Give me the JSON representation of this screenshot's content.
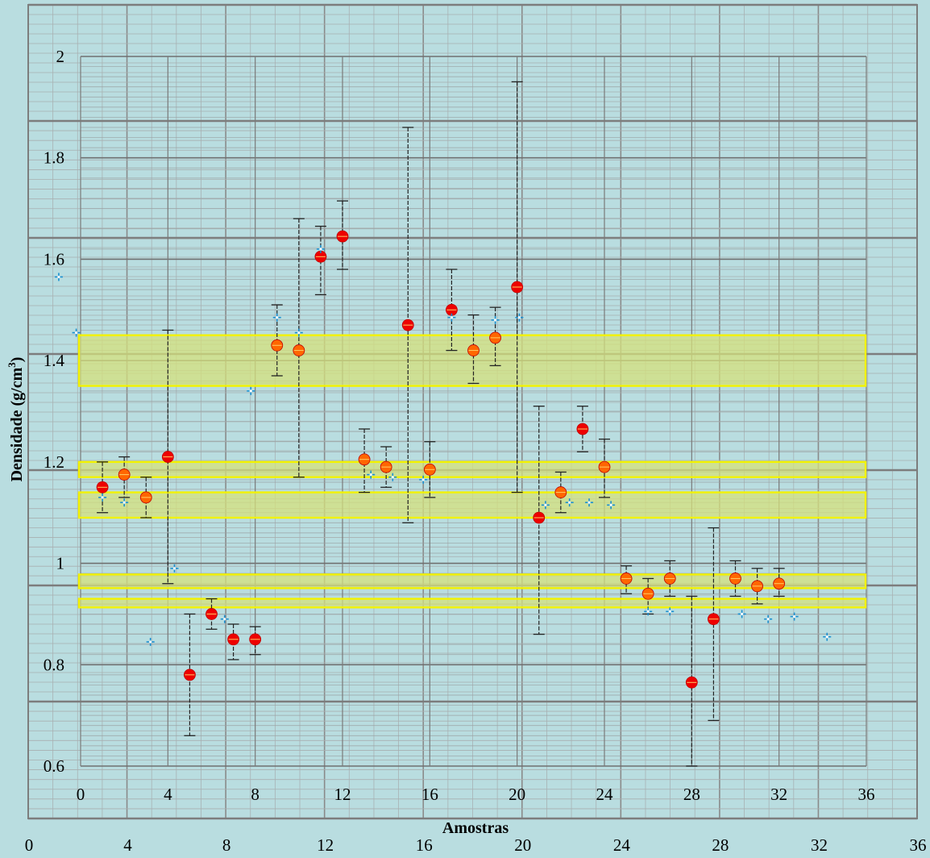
{
  "chart_data": {
    "type": "scatter",
    "xlabel": "Amostras",
    "ylabel": "Densidade (g/cm³)",
    "ylabel_base": "Densidade (g/cm",
    "ylabel_sup": "3",
    "ylabel_end": ")",
    "grid": true,
    "legend": "none",
    "inner": {
      "xlim": [
        0,
        36
      ],
      "ylim": [
        0.6,
        2
      ],
      "x_ticks": [
        "0",
        "4",
        "8",
        "12",
        "16",
        "20",
        "24",
        "28",
        "32",
        "36"
      ],
      "y_ticks": [
        "0.6",
        "0.8",
        "1",
        "1.2",
        "1.4",
        "1.6",
        "1.8",
        "2"
      ]
    },
    "outer": {
      "xlim": [
        0,
        36
      ],
      "x_ticks": [
        "0",
        "4",
        "8",
        "12",
        "16",
        "20",
        "24",
        "28",
        "32",
        "36"
      ]
    },
    "bands": [
      {
        "y0": 1.35,
        "y1": 1.45,
        "fill": "#d6e07c"
      },
      {
        "y0": 1.17,
        "y1": 1.2,
        "fill": "#d6e07c"
      },
      {
        "y0": 1.09,
        "y1": 1.14,
        "fill": "#d6e07c"
      },
      {
        "y0": 0.951,
        "y1": 0.978,
        "fill": "#d6e07c"
      },
      {
        "y0": 0.913,
        "y1": 0.93,
        "fill": "#d6e07c"
      }
    ],
    "band_border": "#f2f200",
    "series": [
      {
        "marker": "circle",
        "color_red": "#ee0000",
        "color_orange": "#ff6600",
        "points": [
          {
            "x": 1,
            "y": 1.15,
            "err_low": 1.1,
            "err_high": 1.2,
            "style": "red"
          },
          {
            "x": 2,
            "y": 1.175,
            "err_low": 1.13,
            "err_high": 1.21,
            "style": "orange"
          },
          {
            "x": 3,
            "y": 1.13,
            "err_low": 1.09,
            "err_high": 1.17,
            "style": "orange"
          },
          {
            "x": 4,
            "y": 1.21,
            "err_low": 0.96,
            "err_high": 1.46,
            "style": "red"
          },
          {
            "x": 5,
            "y": 0.78,
            "err_low": 0.66,
            "err_high": 0.9,
            "style": "red"
          },
          {
            "x": 6,
            "y": 0.9,
            "err_low": 0.87,
            "err_high": 0.93,
            "style": "red"
          },
          {
            "x": 7,
            "y": 0.85,
            "err_low": 0.81,
            "err_high": 0.88,
            "style": "red"
          },
          {
            "x": 8,
            "y": 0.85,
            "err_low": 0.82,
            "err_high": 0.875,
            "style": "red"
          },
          {
            "x": 9,
            "y": 1.43,
            "err_low": 1.37,
            "err_high": 1.51,
            "style": "orange"
          },
          {
            "x": 10,
            "y": 1.42,
            "err_low": 1.17,
            "err_high": 1.68,
            "style": "orange"
          },
          {
            "x": 11,
            "y": 1.605,
            "err_low": 1.53,
            "err_high": 1.665,
            "style": "red"
          },
          {
            "x": 12,
            "y": 1.645,
            "err_low": 1.58,
            "err_high": 1.715,
            "style": "red"
          },
          {
            "x": 13,
            "y": 1.205,
            "err_low": 1.14,
            "err_high": 1.265,
            "style": "orange"
          },
          {
            "x": 14,
            "y": 1.19,
            "err_low": 1.15,
            "err_high": 1.23,
            "style": "orange"
          },
          {
            "x": 15,
            "y": 1.47,
            "err_low": 1.08,
            "err_high": 1.86,
            "style": "red"
          },
          {
            "x": 16,
            "y": 1.185,
            "err_low": 1.13,
            "err_high": 1.24,
            "style": "orange"
          },
          {
            "x": 17,
            "y": 1.5,
            "err_low": 1.42,
            "err_high": 1.58,
            "style": "red"
          },
          {
            "x": 18,
            "y": 1.42,
            "err_low": 1.355,
            "err_high": 1.49,
            "style": "orange"
          },
          {
            "x": 19,
            "y": 1.445,
            "err_low": 1.39,
            "err_high": 1.505,
            "style": "orange"
          },
          {
            "x": 20,
            "y": 1.545,
            "err_low": 1.14,
            "err_high": 1.95,
            "style": "red"
          },
          {
            "x": 21,
            "y": 1.09,
            "err_low": 0.86,
            "err_high": 1.31,
            "style": "red"
          },
          {
            "x": 22,
            "y": 1.14,
            "err_low": 1.1,
            "err_high": 1.18,
            "style": "orange"
          },
          {
            "x": 23,
            "y": 1.265,
            "err_low": 1.22,
            "err_high": 1.31,
            "style": "red"
          },
          {
            "x": 24,
            "y": 1.19,
            "err_low": 1.13,
            "err_high": 1.245,
            "style": "orange"
          },
          {
            "x": 25,
            "y": 0.97,
            "err_low": 0.94,
            "err_high": 0.995,
            "style": "orange"
          },
          {
            "x": 26,
            "y": 0.94,
            "err_low": 0.9,
            "err_high": 0.97,
            "style": "orange"
          },
          {
            "x": 27,
            "y": 0.97,
            "err_low": 0.935,
            "err_high": 1.005,
            "style": "orange"
          },
          {
            "x": 28,
            "y": 0.765,
            "err_low": 0.6,
            "err_high": 0.935,
            "style": "red"
          },
          {
            "x": 29,
            "y": 0.89,
            "err_low": 0.69,
            "err_high": 1.07,
            "style": "red"
          },
          {
            "x": 30,
            "y": 0.97,
            "err_low": 0.935,
            "err_high": 1.005,
            "style": "orange"
          },
          {
            "x": 31,
            "y": 0.955,
            "err_low": 0.92,
            "err_high": 0.99,
            "style": "orange"
          },
          {
            "x": 32,
            "y": 0.96,
            "err_low": 0.935,
            "err_high": 0.99,
            "style": "orange"
          }
        ]
      },
      {
        "marker": "cross",
        "color": "#1a8fd0",
        "points": [
          {
            "x": -1,
            "y": 1.565
          },
          {
            "x": -0.2,
            "y": 1.455
          },
          {
            "x": 1,
            "y": 1.13
          },
          {
            "x": 2,
            "y": 1.12
          },
          {
            "x": 3.2,
            "y": 0.845
          },
          {
            "x": 4.3,
            "y": 0.99
          },
          {
            "x": 6.6,
            "y": 0.89
          },
          {
            "x": 7.8,
            "y": 1.34
          },
          {
            "x": 9,
            "y": 1.485
          },
          {
            "x": 10,
            "y": 1.455
          },
          {
            "x": 11,
            "y": 1.62
          },
          {
            "x": 13.3,
            "y": 1.175
          },
          {
            "x": 14.3,
            "y": 1.17
          },
          {
            "x": 15.7,
            "y": 1.165
          },
          {
            "x": 17,
            "y": 1.485
          },
          {
            "x": 19,
            "y": 1.48
          },
          {
            "x": 20.1,
            "y": 1.485
          },
          {
            "x": 21.3,
            "y": 1.115
          },
          {
            "x": 22.4,
            "y": 1.12
          },
          {
            "x": 23.3,
            "y": 1.12
          },
          {
            "x": 24.3,
            "y": 1.115
          },
          {
            "x": 26,
            "y": 0.905
          },
          {
            "x": 27,
            "y": 0.905
          },
          {
            "x": 30.3,
            "y": 0.9
          },
          {
            "x": 31.5,
            "y": 0.89
          },
          {
            "x": 32.7,
            "y": 0.895
          },
          {
            "x": 34.2,
            "y": 0.855
          }
        ]
      }
    ]
  }
}
